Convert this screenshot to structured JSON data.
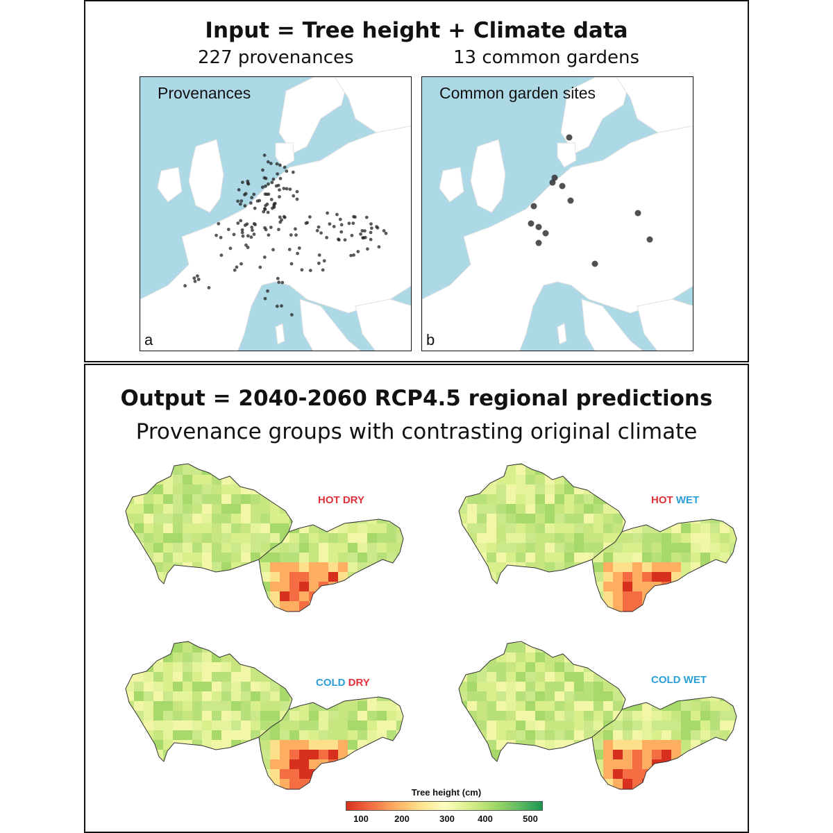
{
  "top": {
    "title": "Input = Tree height  + Climate data",
    "left_subtitle": "227 provenances",
    "right_subtitle": "13 common gardens",
    "map_a": {
      "label": "Provenances",
      "corner": "a"
    },
    "map_b": {
      "label": "Common garden sites",
      "corner": "b"
    }
  },
  "bottom": {
    "title": "Output = 2040-2060 RCP4.5 regional predictions",
    "subtitle": "Provenance groups with contrasting original climate",
    "scenarios": [
      {
        "word1": "HOT",
        "word2": "DRY"
      },
      {
        "word1": "HOT",
        "word2": "WET"
      },
      {
        "word1": "COLD",
        "word2": "DRY"
      },
      {
        "word1": "COLD",
        "word2": "WET"
      }
    ],
    "legend": {
      "title": "Tree height (cm)",
      "ticks": [
        "100",
        "200",
        "300",
        "400",
        "500"
      ],
      "range": [
        60,
        540
      ]
    }
  },
  "colors": {
    "sea": "#add8e6",
    "land": "#ffffff",
    "hot": "#e0303a",
    "cold": "#2a9fd6"
  }
}
